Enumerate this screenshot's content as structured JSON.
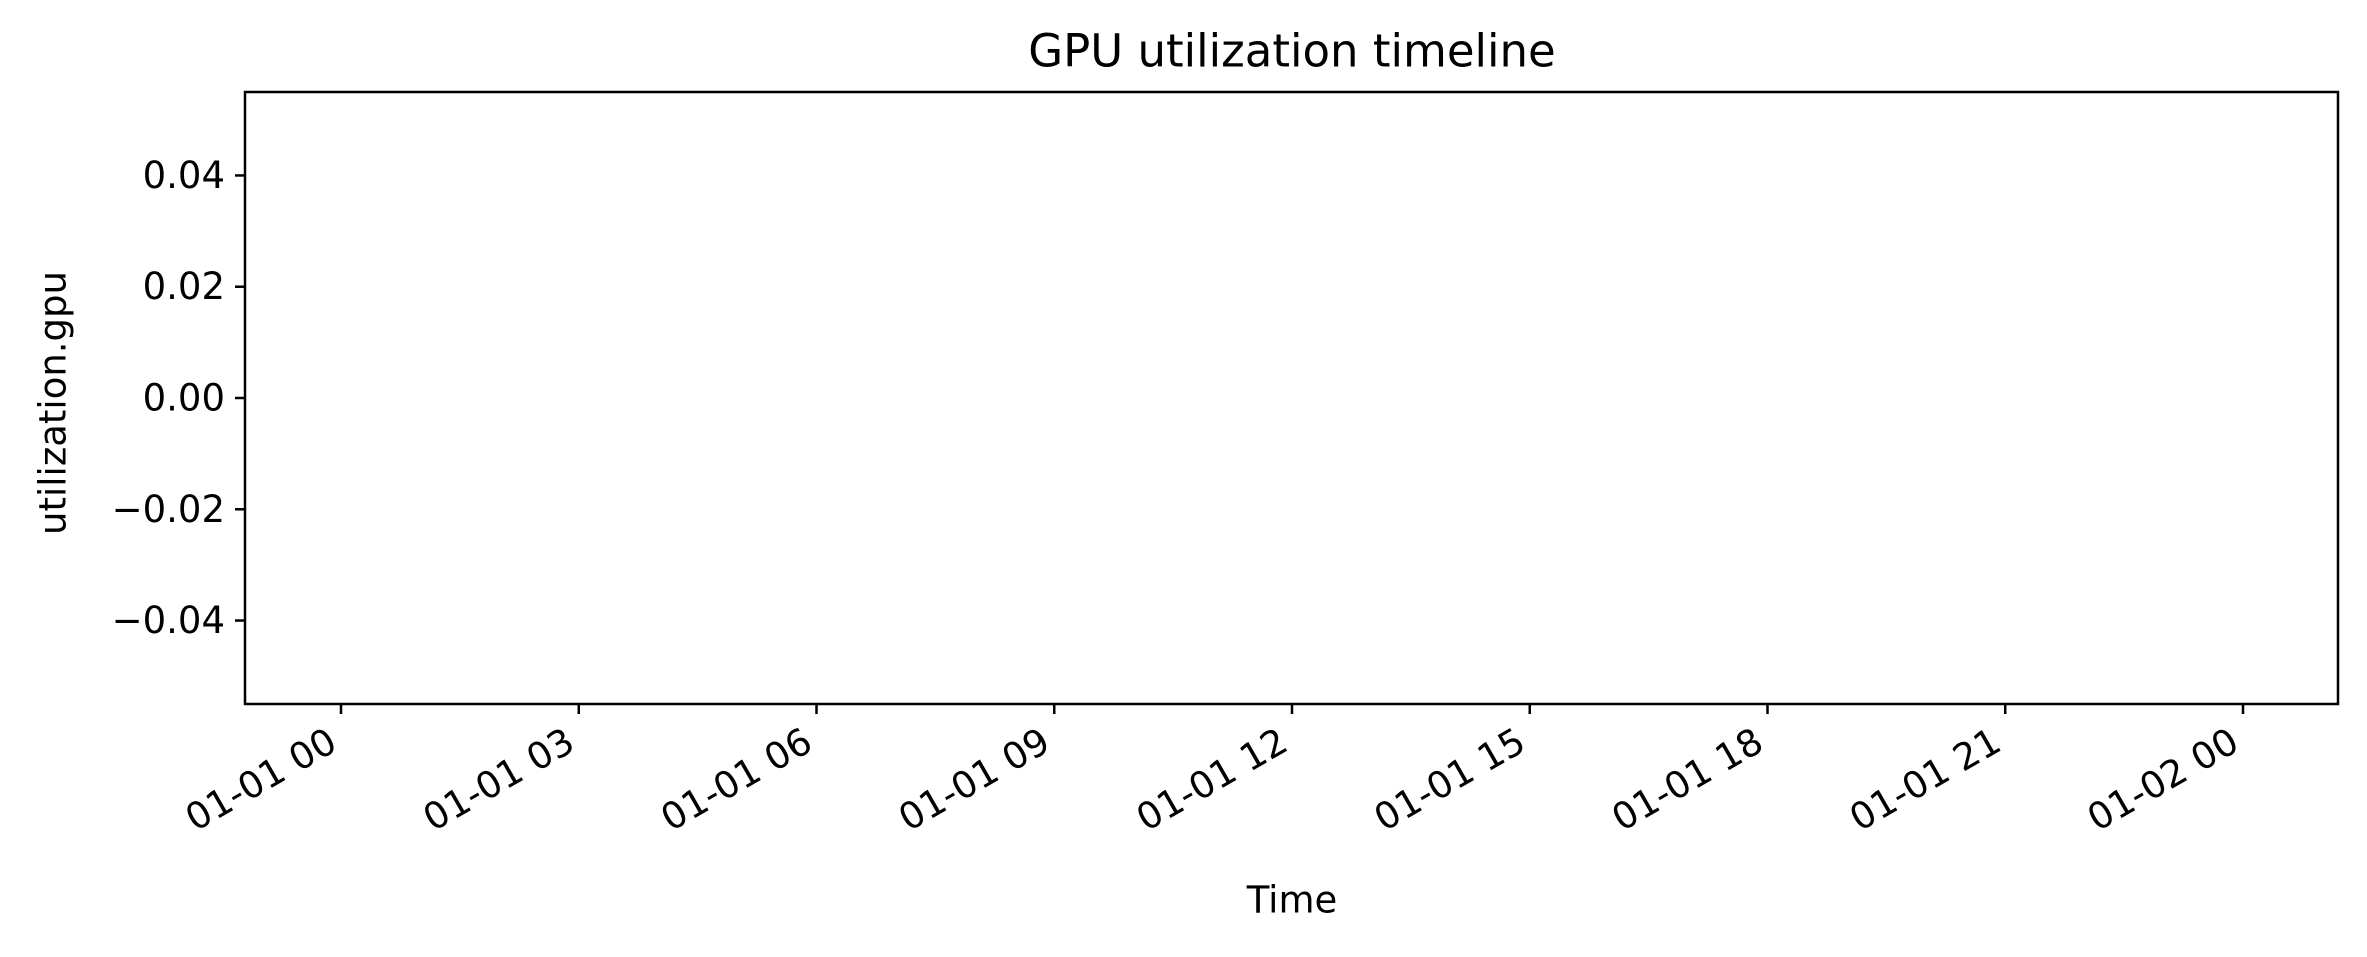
{
  "chart_data": {
    "type": "line",
    "title": "GPU utilization timeline",
    "xlabel": "Time",
    "ylabel": "utilization.gpu",
    "x_tick_labels": [
      "01-01 00",
      "01-01 03",
      "01-01 06",
      "01-01 09",
      "01-01 12",
      "01-01 15",
      "01-01 18",
      "01-01 21",
      "01-02 00"
    ],
    "y_tick_labels": [
      "0.04",
      "0.02",
      "0.00",
      "−0.02",
      "−0.04"
    ],
    "y_ticks": [
      0.04,
      0.02,
      0.0,
      -0.02,
      -0.04
    ],
    "ylim": [
      -0.055,
      0.055
    ],
    "grid": false,
    "series": []
  }
}
